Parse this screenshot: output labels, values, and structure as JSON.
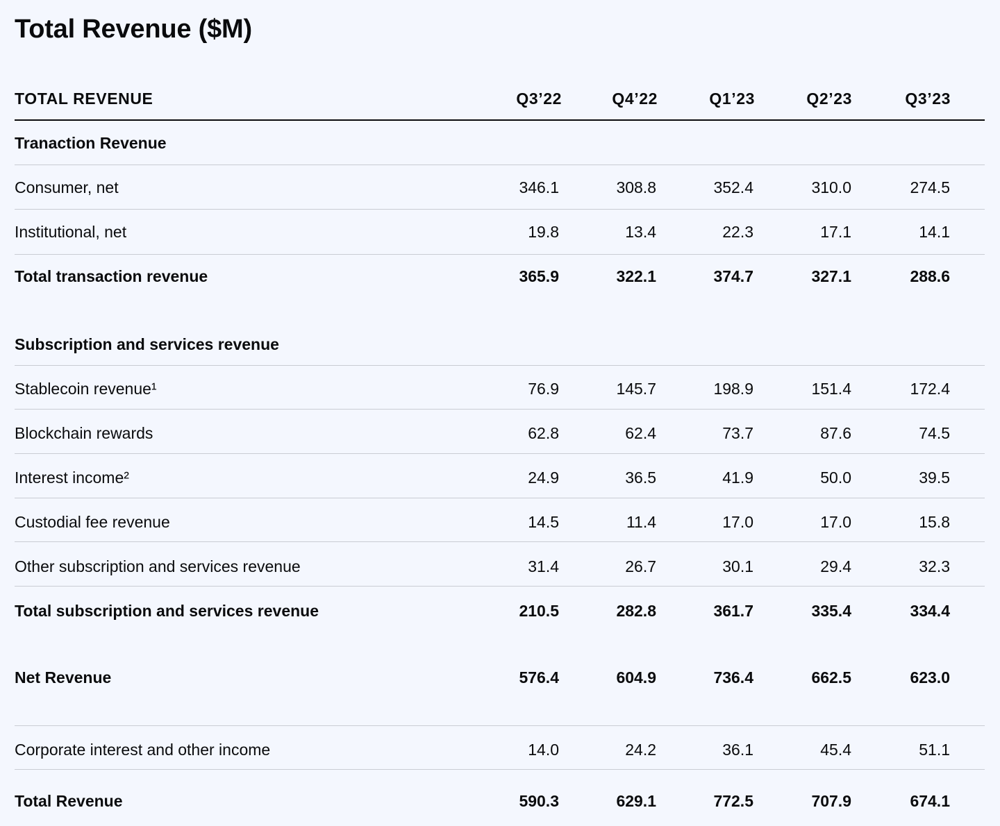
{
  "title": "Total Revenue ($M)",
  "columns": {
    "label": "TOTAL REVENUE",
    "periods": [
      "Q3’22",
      "Q4’22",
      "Q1’23",
      "Q2’23",
      "Q3’23"
    ]
  },
  "sections": {
    "transaction": {
      "heading": "Tranaction Revenue",
      "rows": [
        {
          "label": "Consumer, net",
          "values": [
            "346.1",
            "308.8",
            "352.4",
            "310.0",
            "274.5"
          ]
        },
        {
          "label": "Institutional, net",
          "values": [
            "19.8",
            "13.4",
            "22.3",
            "17.1",
            "14.1"
          ]
        }
      ],
      "total": {
        "label": "Total transaction revenue",
        "values": [
          "365.9",
          "322.1",
          "374.7",
          "327.1",
          "288.6"
        ]
      }
    },
    "subscription": {
      "heading": "Subscription and services revenue",
      "rows": [
        {
          "label": "Stablecoin revenue¹",
          "values": [
            "76.9",
            "145.7",
            "198.9",
            "151.4",
            "172.4"
          ]
        },
        {
          "label": "Blockchain rewards",
          "values": [
            "62.8",
            "62.4",
            "73.7",
            "87.6",
            "74.5"
          ]
        },
        {
          "label": "Interest income²",
          "values": [
            "24.9",
            "36.5",
            "41.9",
            "50.0",
            "39.5"
          ]
        },
        {
          "label": "Custodial fee revenue",
          "values": [
            "14.5",
            "11.4",
            "17.0",
            "17.0",
            "15.8"
          ]
        },
        {
          "label": "Other subscription and services revenue",
          "values": [
            "31.4",
            "26.7",
            "30.1",
            "29.4",
            "32.3"
          ]
        }
      ],
      "total": {
        "label": "Total subscription and services revenue",
        "values": [
          "210.5",
          "282.8",
          "361.7",
          "335.4",
          "334.4"
        ]
      }
    }
  },
  "net_revenue": {
    "label": "Net Revenue",
    "values": [
      "576.4",
      "604.9",
      "736.4",
      "662.5",
      "623.0"
    ]
  },
  "corporate_interest": {
    "label": "Corporate interest and other income",
    "values": [
      "14.0",
      "24.2",
      "36.1",
      "45.4",
      "51.1"
    ]
  },
  "total_revenue": {
    "label": "Total Revenue",
    "values": [
      "590.3",
      "629.1",
      "772.5",
      "707.9",
      "674.1"
    ]
  }
}
